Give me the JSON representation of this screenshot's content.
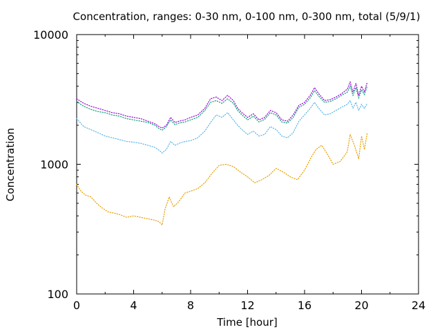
{
  "chart_data": {
    "type": "line",
    "title": "Concentration, ranges: 0-30 nm, 0-100 nm, 0-300 nm, total (5/9/1)",
    "xlabel": "Time [hour]",
    "ylabel": "Concentration",
    "x_ticks": [
      "0",
      "4",
      "8",
      "12",
      "16",
      "20",
      "24"
    ],
    "y_ticks": [
      "100",
      "1000",
      "10000"
    ],
    "xlim": [
      0,
      24
    ],
    "ylim": [
      100,
      10000
    ],
    "y_scale": "log",
    "grid": false,
    "line_style": "dotted",
    "series": [
      {
        "color": "#9400d3",
        "x": [
          0,
          0.5,
          1,
          1.5,
          2,
          2.5,
          3,
          3.5,
          4,
          4.5,
          5,
          5.5,
          5.8,
          6,
          6.3,
          6.6,
          6.9,
          7.2,
          7.6,
          8,
          8.5,
          9,
          9.4,
          9.8,
          10.2,
          10.6,
          11,
          11.3,
          11.6,
          12,
          12.4,
          12.8,
          13.2,
          13.6,
          14,
          14.4,
          14.8,
          15.2,
          15.6,
          16,
          16.4,
          16.7,
          17,
          17.4,
          17.8,
          18.2,
          18.6,
          19,
          19.2,
          19.4,
          19.6,
          19.8,
          20,
          20.2,
          20.4
        ],
        "y": [
          3200,
          2950,
          2800,
          2700,
          2600,
          2500,
          2450,
          2350,
          2300,
          2250,
          2150,
          2050,
          1950,
          1900,
          2000,
          2300,
          2100,
          2150,
          2200,
          2300,
          2400,
          2700,
          3200,
          3300,
          3100,
          3400,
          3100,
          2700,
          2500,
          2300,
          2450,
          2200,
          2300,
          2600,
          2500,
          2200,
          2150,
          2400,
          2850,
          3000,
          3400,
          3900,
          3500,
          3100,
          3150,
          3300,
          3500,
          3800,
          4300,
          3600,
          4200,
          3400,
          4000,
          3600,
          4300
        ]
      },
      {
        "color": "#009e73",
        "x": [
          0,
          0.5,
          1,
          1.5,
          2,
          2.5,
          3,
          3.5,
          4,
          4.5,
          5,
          5.5,
          5.8,
          6,
          6.3,
          6.6,
          6.9,
          7.2,
          7.6,
          8,
          8.5,
          9,
          9.4,
          9.8,
          10.2,
          10.6,
          11,
          11.3,
          11.6,
          12,
          12.4,
          12.8,
          13.2,
          13.6,
          14,
          14.4,
          14.8,
          15.2,
          15.6,
          16,
          16.4,
          16.7,
          17,
          17.4,
          17.8,
          18.2,
          18.6,
          19,
          19.2,
          19.4,
          19.6,
          19.8,
          20,
          20.2,
          20.4
        ],
        "y": [
          3050,
          2800,
          2650,
          2550,
          2500,
          2400,
          2350,
          2250,
          2200,
          2150,
          2100,
          2000,
          1880,
          1830,
          1950,
          2200,
          2020,
          2080,
          2120,
          2200,
          2300,
          2600,
          3000,
          3100,
          2950,
          3200,
          2950,
          2600,
          2400,
          2200,
          2350,
          2120,
          2220,
          2500,
          2400,
          2120,
          2080,
          2300,
          2750,
          2900,
          3250,
          3700,
          3350,
          3000,
          3050,
          3200,
          3400,
          3600,
          4000,
          3400,
          3900,
          3250,
          3750,
          3450,
          4000
        ]
      },
      {
        "color": "#56b4e9",
        "x": [
          0,
          0.5,
          1,
          1.5,
          2,
          2.5,
          3,
          3.5,
          4,
          4.5,
          5,
          5.5,
          5.8,
          6,
          6.3,
          6.6,
          6.9,
          7.2,
          7.6,
          8,
          8.5,
          9,
          9.4,
          9.8,
          10.2,
          10.6,
          11,
          11.3,
          11.6,
          12,
          12.4,
          12.8,
          13.2,
          13.6,
          14,
          14.4,
          14.8,
          15.2,
          15.6,
          16,
          16.4,
          16.7,
          17,
          17.4,
          17.8,
          18.2,
          18.6,
          19,
          19.2,
          19.4,
          19.6,
          19.8,
          20,
          20.2,
          20.4
        ],
        "y": [
          2250,
          1950,
          1850,
          1750,
          1650,
          1600,
          1550,
          1500,
          1480,
          1450,
          1400,
          1350,
          1280,
          1220,
          1300,
          1500,
          1400,
          1450,
          1500,
          1520,
          1600,
          1800,
          2100,
          2400,
          2300,
          2500,
          2200,
          2000,
          1850,
          1700,
          1800,
          1650,
          1700,
          1950,
          1850,
          1650,
          1600,
          1750,
          2150,
          2400,
          2700,
          3000,
          2700,
          2400,
          2450,
          2600,
          2750,
          2900,
          3100,
          2700,
          3000,
          2600,
          2900,
          2700,
          2950
        ]
      },
      {
        "color": "#e69f00",
        "x": [
          0,
          0.3,
          0.6,
          1,
          1.4,
          1.8,
          2.2,
          2.6,
          3,
          3.5,
          4,
          4.5,
          5,
          5.5,
          5.8,
          6,
          6.2,
          6.5,
          6.8,
          7.2,
          7.6,
          8,
          8.5,
          9,
          9.5,
          10,
          10.5,
          11,
          11.5,
          12,
          12.5,
          13,
          13.5,
          14,
          14.5,
          15,
          15.5,
          16,
          16.5,
          16.8,
          17.2,
          17.6,
          18,
          18.5,
          19,
          19.2,
          19.5,
          19.8,
          20,
          20.2,
          20.4
        ],
        "y": [
          700,
          620,
          580,
          560,
          500,
          460,
          430,
          420,
          410,
          390,
          400,
          390,
          380,
          370,
          360,
          340,
          450,
          560,
          470,
          520,
          600,
          620,
          650,
          720,
          850,
          980,
          1000,
          960,
          870,
          800,
          720,
          760,
          820,
          930,
          870,
          800,
          760,
          900,
          1150,
          1300,
          1400,
          1200,
          1000,
          1050,
          1250,
          1700,
          1400,
          1100,
          1650,
          1300,
          1750
        ]
      }
    ]
  }
}
